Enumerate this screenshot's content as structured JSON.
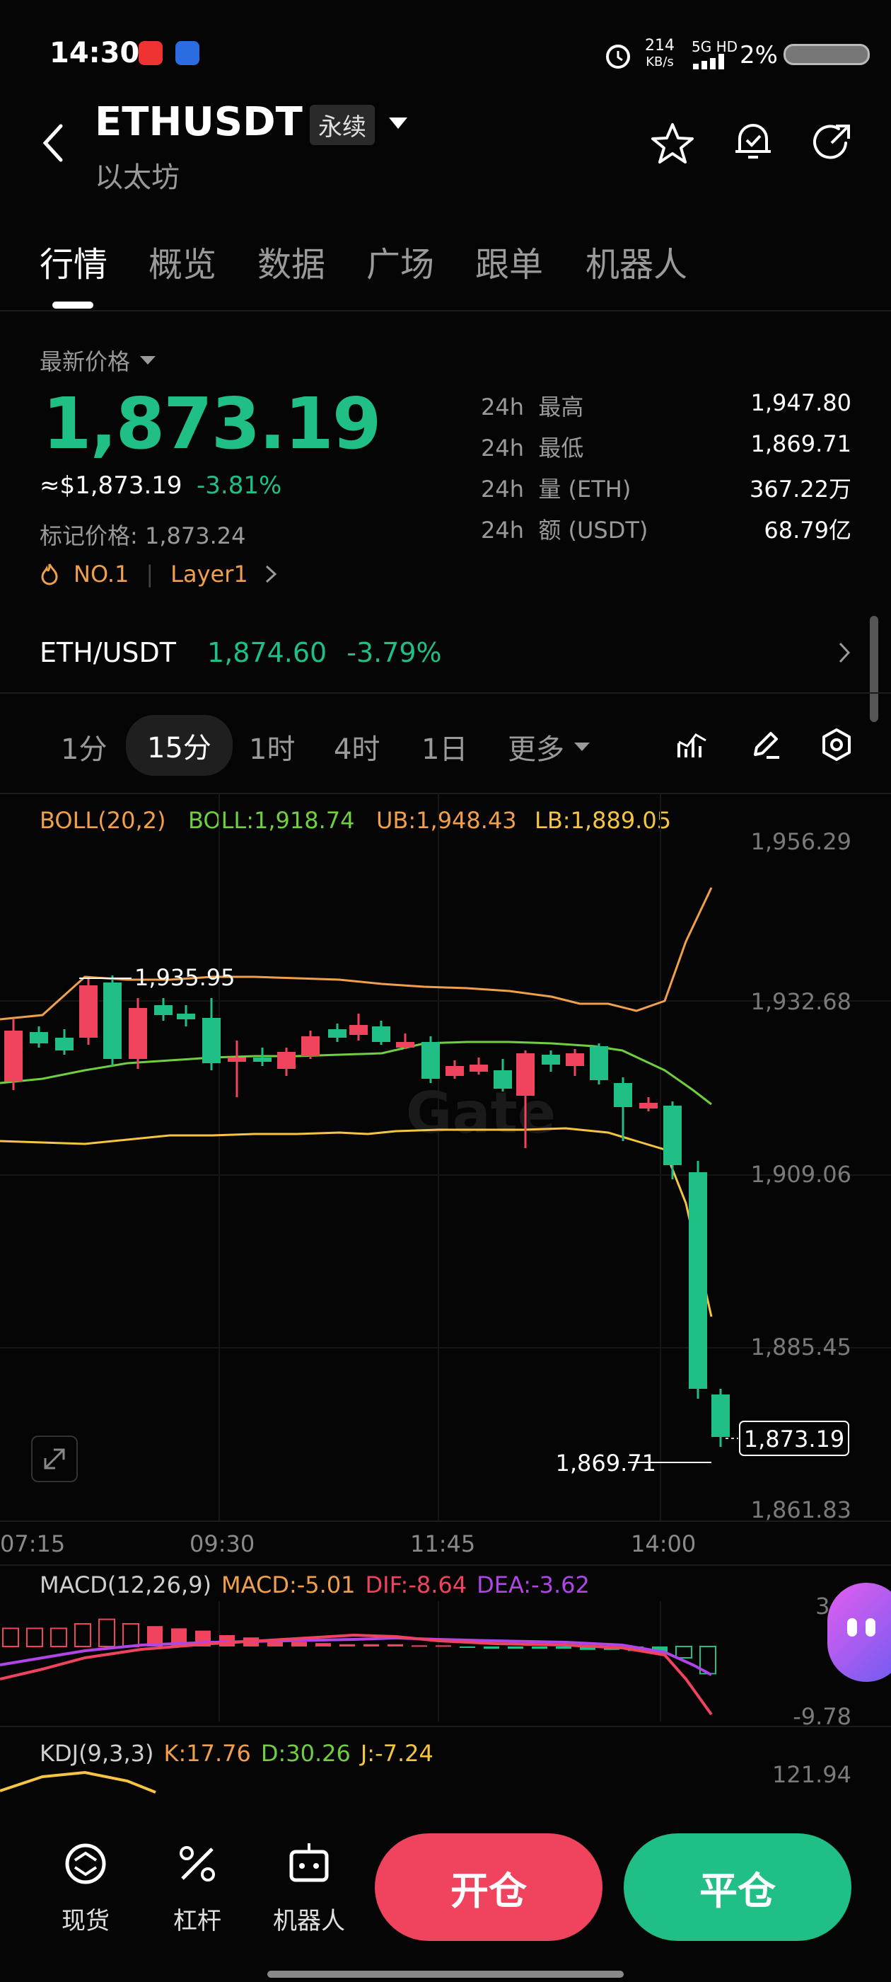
{
  "status_bar": {
    "time": "14:30",
    "net_speed_value": "214",
    "net_speed_unit": "KB/s",
    "network": "5G HD",
    "battery": "2%"
  },
  "header": {
    "symbol": "ETHUSDT",
    "contract_type": "永续",
    "name": "以太坊"
  },
  "tabs": [
    "行情",
    "概览",
    "数据",
    "广场",
    "跟单",
    "机器人"
  ],
  "price_block": {
    "label": "最新价格",
    "last_price": "1,873.19",
    "usd_equiv": "≈$1,873.19",
    "change_pct": "-3.81%",
    "mark_label": "标记价格:",
    "mark_price": "1,873.24",
    "rank_tag": "NO.1",
    "sector_tag": "Layer1"
  },
  "stats_24h": [
    {
      "period": "24h",
      "label": "最高",
      "value": "1,947.80"
    },
    {
      "period": "24h",
      "label": "最低",
      "value": "1,869.71"
    },
    {
      "period": "24h",
      "label": "量 (ETH)",
      "value": "367.22万"
    },
    {
      "period": "24h",
      "label": "额 (USDT)",
      "value": "68.79亿"
    }
  ],
  "spot_ticker": {
    "pair": "ETH/USDT",
    "price": "1,874.60",
    "change_pct": "-3.79%"
  },
  "timeframes": [
    "1分",
    "15分",
    "1时",
    "4时",
    "1日",
    "更多"
  ],
  "boll": {
    "name": "BOLL(20,2)",
    "mid": "BOLL:1,918.74",
    "ub": "UB:1,948.43",
    "lb": "LB:1,889.05"
  },
  "price_axis": [
    "1,956.29",
    "1,932.68",
    "1,909.06",
    "1,885.45",
    "1,861.83"
  ],
  "time_axis": [
    "07:15",
    "09:30",
    "11:45",
    "14:00"
  ],
  "chart_annotations": {
    "high": "1,935.95",
    "low": "1,869.71",
    "last": "1,873.19"
  },
  "watermark": "Gate",
  "macd": {
    "name": "MACD(12,26,9)",
    "macd": "MACD:-5.01",
    "dif": "DIF:-8.64",
    "dea": "DEA:-3.62",
    "axis_top": "3.9",
    "axis_bottom": "-9.78"
  },
  "kdj": {
    "name": "KDJ(9,3,3)",
    "k": "K:17.76",
    "d": "D:30.26",
    "j": "J:-7.24",
    "axis_top": "121.94"
  },
  "bottom_nav": [
    "现货",
    "杠杆",
    "机器人"
  ],
  "actions": {
    "open": "开仓",
    "close": "平仓"
  },
  "colors": {
    "up": "#1fbf86",
    "down": "#f0435e",
    "boll_ub": "#f0a04b",
    "boll_mid": "#6fcf3f",
    "boll_lb": "#f5c542",
    "dea": "#b046e8"
  }
}
